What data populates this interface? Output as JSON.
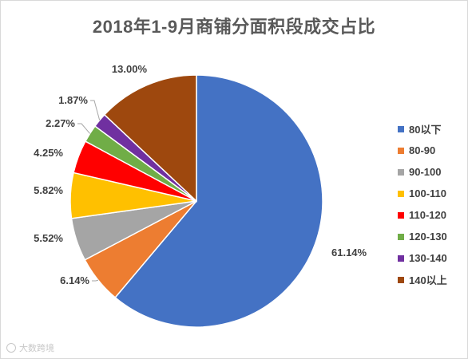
{
  "chart_data": {
    "type": "pie",
    "title": "2018年1-9月商铺分面积段成交占比",
    "slices": [
      {
        "label": "80以下",
        "value": 61.14,
        "value_label": "61.14%",
        "color": "#4472C4"
      },
      {
        "label": "80-90",
        "value": 6.14,
        "value_label": "6.14%",
        "color": "#ED7D31"
      },
      {
        "label": "90-100",
        "value": 5.52,
        "value_label": "5.52%",
        "color": "#A5A5A5"
      },
      {
        "label": "100-110",
        "value": 5.82,
        "value_label": "5.82%",
        "color": "#FFC000"
      },
      {
        "label": "110-120",
        "value": 4.25,
        "value_label": "4.25%",
        "color": "#FF0000"
      },
      {
        "label": "120-130",
        "value": 2.27,
        "value_label": "2.27%",
        "color": "#70AD47"
      },
      {
        "label": "130-140",
        "value": 1.87,
        "value_label": "1.87%",
        "color": "#7030A0"
      },
      {
        "label": "140以上",
        "value": 13.0,
        "value_label": "13.00%",
        "color": "#9E480E"
      }
    ],
    "legend_position": "right",
    "start_angle": "12 o'clock",
    "direction": "clockwise"
  },
  "watermark": {
    "text": "大数跨境",
    "icon": "logo-icon"
  }
}
